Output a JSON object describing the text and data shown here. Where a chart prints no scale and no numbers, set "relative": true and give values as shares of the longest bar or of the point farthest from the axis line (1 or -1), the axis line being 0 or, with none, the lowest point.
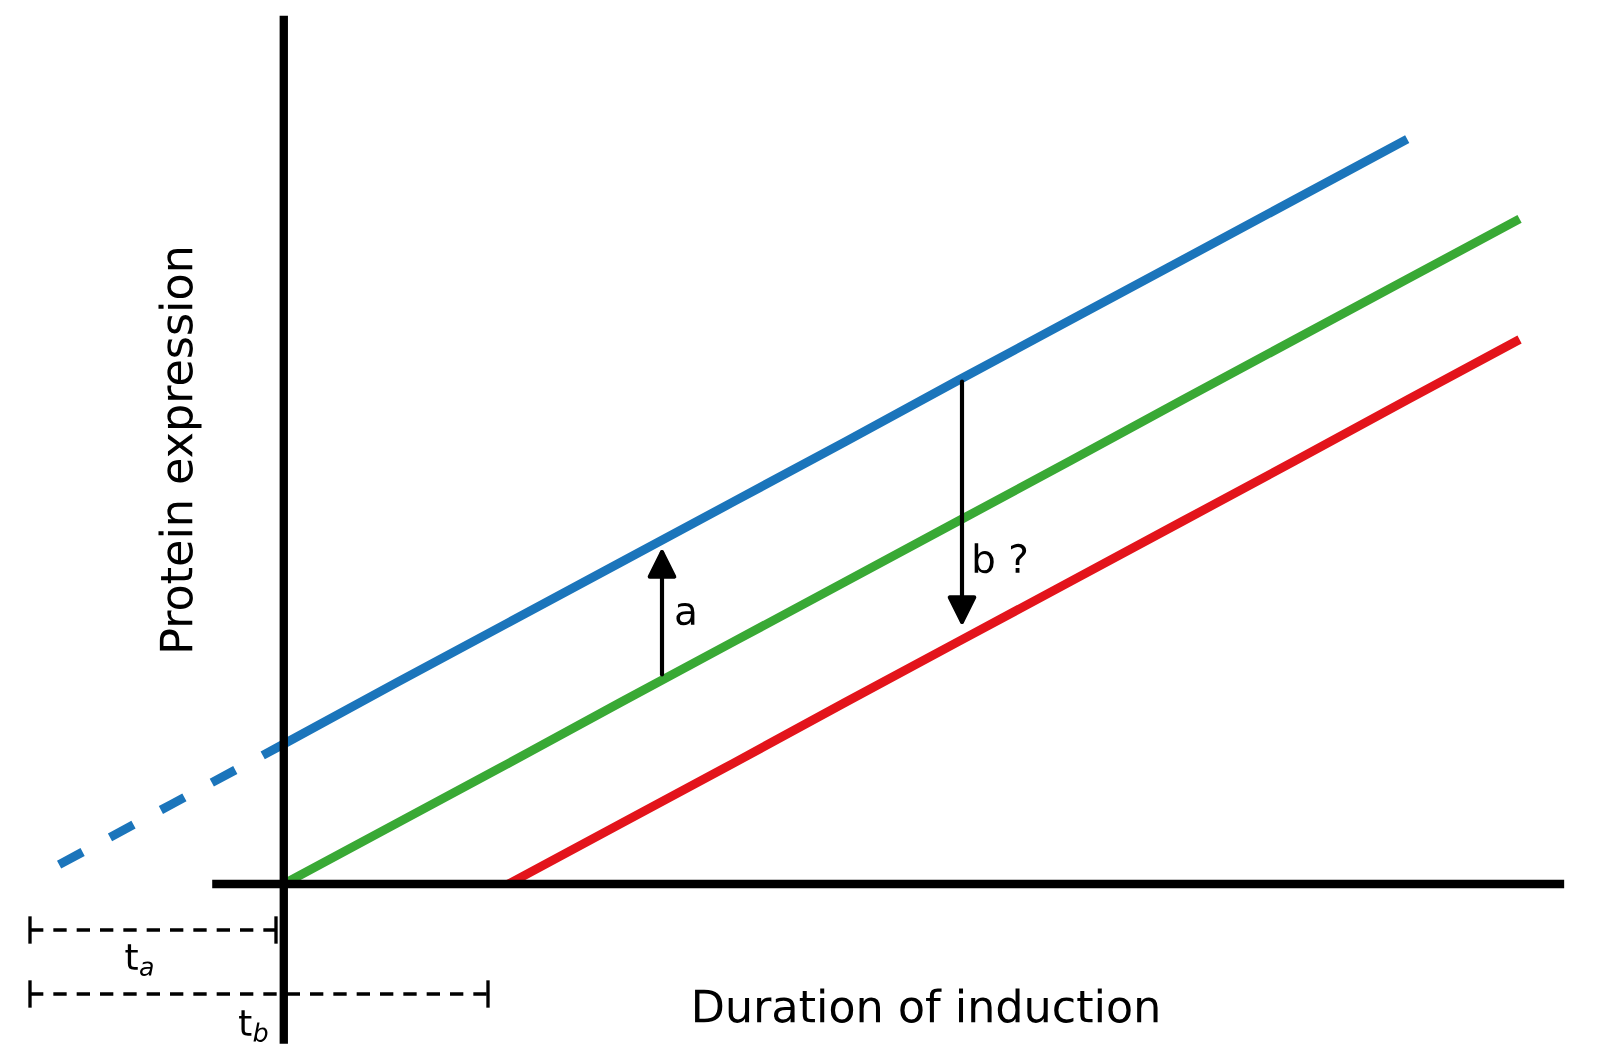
{
  "chart_data": {
    "type": "line",
    "relative": true,
    "xlabel": "Duration of induction",
    "ylabel": "Protein expression",
    "categories": [
      null,
      null,
      null,
      null,
      null,
      null,
      null,
      null,
      null,
      null,
      null,
      null,
      null,
      null
    ],
    "series": [
      {
        "color": "#1b75bb",
        "line_style": "dotted",
        "values": [
          0.026,
          0.107,
          0.188,
          null,
          null,
          null,
          null,
          null,
          null,
          null,
          null,
          null,
          null,
          null
        ]
      },
      {
        "color": "#1b75bb",
        "values": [
          null,
          null,
          0.188,
          0.27,
          0.351,
          0.432,
          0.513,
          0.594,
          0.676,
          0.757,
          0.838,
          0.919,
          1.0,
          null
        ]
      },
      {
        "color": "#39a935",
        "values": [
          null,
          null,
          0,
          0.081,
          0.162,
          0.244,
          0.325,
          0.406,
          0.487,
          0.568,
          0.65,
          0.731,
          0.812,
          0.893
        ]
      },
      {
        "color": "#e3141b",
        "values": [
          null,
          null,
          null,
          null,
          0,
          0.081,
          0.162,
          0.244,
          0.325,
          0.406,
          0.487,
          0.568,
          0.65,
          0.731
        ]
      }
    ],
    "annotations": [
      "a",
      "b ?",
      "t$_{a}$",
      "t$_{b}$"
    ],
    "legend": false,
    "tick_labels": false,
    "marker": "none",
    "line_style": "solid"
  }
}
